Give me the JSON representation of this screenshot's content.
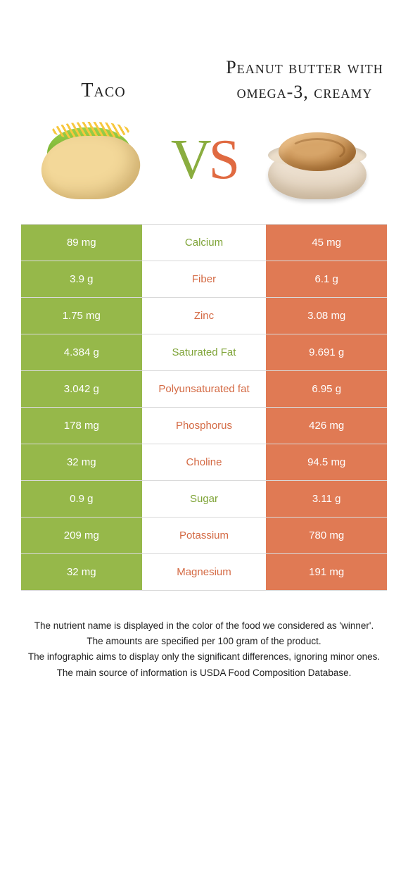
{
  "header": {
    "left_title": "Taco",
    "right_title": "Peanut butter with omega-3, creamy",
    "vs_v": "V",
    "vs_s": "S"
  },
  "colors": {
    "left_bg": "#96b84a",
    "right_bg": "#e07a54",
    "left_text": "#7fa438",
    "right_text": "#d46a44",
    "border": "#d9d9d9",
    "page_bg": "#ffffff"
  },
  "rows": [
    {
      "label": "Calcium",
      "left": "89 mg",
      "right": "45 mg",
      "winner": "left"
    },
    {
      "label": "Fiber",
      "left": "3.9 g",
      "right": "6.1 g",
      "winner": "right"
    },
    {
      "label": "Zinc",
      "left": "1.75 mg",
      "right": "3.08 mg",
      "winner": "right"
    },
    {
      "label": "Saturated Fat",
      "left": "4.384 g",
      "right": "9.691 g",
      "winner": "left"
    },
    {
      "label": "Polyunsaturated fat",
      "left": "3.042 g",
      "right": "6.95 g",
      "winner": "right"
    },
    {
      "label": "Phosphorus",
      "left": "178 mg",
      "right": "426 mg",
      "winner": "right"
    },
    {
      "label": "Choline",
      "left": "32 mg",
      "right": "94.5 mg",
      "winner": "right"
    },
    {
      "label": "Sugar",
      "left": "0.9 g",
      "right": "3.11 g",
      "winner": "left"
    },
    {
      "label": "Potassium",
      "left": "209 mg",
      "right": "780 mg",
      "winner": "right"
    },
    {
      "label": "Magnesium",
      "left": "32 mg",
      "right": "191 mg",
      "winner": "right"
    }
  ],
  "footnotes": [
    "The nutrient name is displayed in the color of the food we considered as 'winner'.",
    "The amounts are specified per 100 gram of the product.",
    "The infographic aims to display only the significant differences, ignoring minor ones.",
    "The main source of information is USDA Food Composition Database."
  ]
}
